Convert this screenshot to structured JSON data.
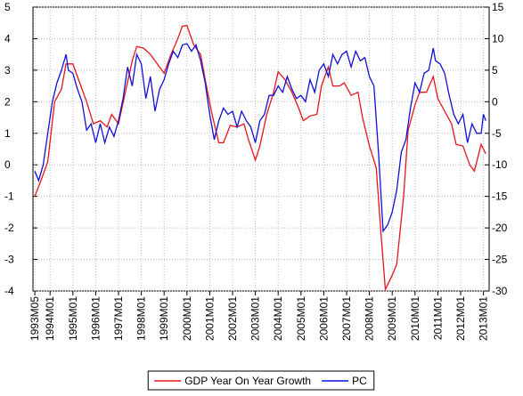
{
  "chart_data": {
    "type": "line",
    "xlim": [
      1993.25,
      2013.25
    ],
    "xticks": [
      {
        "value": 1993.333,
        "label": "1993M05"
      },
      {
        "value": 1994,
        "label": "1994M01"
      },
      {
        "value": 1995,
        "label": "1995M01"
      },
      {
        "value": 1996,
        "label": "1996M01"
      },
      {
        "value": 1997,
        "label": "1997M01"
      },
      {
        "value": 1998,
        "label": "1998M01"
      },
      {
        "value": 1999,
        "label": "1999M01"
      },
      {
        "value": 2000,
        "label": "2000M01"
      },
      {
        "value": 2001,
        "label": "2001M01"
      },
      {
        "value": 2002,
        "label": "2002M01"
      },
      {
        "value": 2003,
        "label": "2003M01"
      },
      {
        "value": 2004,
        "label": "2004M01"
      },
      {
        "value": 2005,
        "label": "2005M01"
      },
      {
        "value": 2006,
        "label": "2006M01"
      },
      {
        "value": 2007,
        "label": "2007M01"
      },
      {
        "value": 2008,
        "label": "2008M01"
      },
      {
        "value": 2009,
        "label": "2009M01"
      },
      {
        "value": 2010,
        "label": "2010M01"
      },
      {
        "value": 2011,
        "label": "2011M01"
      },
      {
        "value": 2012,
        "label": "2012M01"
      },
      {
        "value": 2013,
        "label": "2013M01"
      }
    ],
    "ylim": [
      -4,
      5
    ],
    "yticks": [
      -4,
      -3,
      -2,
      -1,
      0,
      1,
      2,
      3,
      4,
      5
    ],
    "y2lim": [
      -30,
      15
    ],
    "y2ticks": [
      -30,
      -25,
      -20,
      -15,
      -10,
      -5,
      0,
      5,
      10,
      15
    ],
    "grid": true,
    "legend": "bottom",
    "series": [
      {
        "name": "GDP Year On Year Growth",
        "color": "#e8141c",
        "x": [
          1993.33,
          1993.6,
          1993.9,
          1994.2,
          1994.5,
          1994.7,
          1995.0,
          1995.3,
          1995.6,
          1995.9,
          1996.2,
          1996.5,
          1996.7,
          1997.0,
          1997.3,
          1997.6,
          1997.8,
          1998.1,
          1998.4,
          1998.7,
          1999.0,
          1999.3,
          1999.6,
          1999.8,
          2000.0,
          2000.3,
          2000.6,
          2000.8,
          2001.1,
          2001.4,
          2001.6,
          2001.9,
          2002.2,
          2002.5,
          2002.7,
          2003.0,
          2003.2,
          2003.5,
          2003.8,
          2004.0,
          2004.3,
          2004.6,
          2004.9,
          2005.1,
          2005.4,
          2005.7,
          2005.9,
          2006.2,
          2006.4,
          2006.7,
          2006.9,
          2007.2,
          2007.5,
          2007.7,
          2008.0,
          2008.3,
          2008.5,
          2008.7,
          2009.0,
          2009.2,
          2009.5,
          2009.7,
          2010.0,
          2010.2,
          2010.5,
          2010.8,
          2011.0,
          2011.3,
          2011.6,
          2011.8,
          2012.1,
          2012.4,
          2012.6,
          2012.9,
          2013.1
        ],
        "values": [
          -1,
          -0.5,
          0.1,
          2.0,
          2.4,
          3.2,
          3.2,
          2.6,
          2.0,
          1.3,
          1.4,
          1.2,
          1.6,
          1.3,
          2.3,
          3.3,
          3.75,
          3.7,
          3.5,
          3.2,
          2.9,
          3.5,
          4.0,
          4.4,
          4.42,
          3.8,
          3.5,
          2.7,
          1.6,
          0.7,
          0.7,
          1.25,
          1.2,
          1.3,
          0.8,
          0.15,
          0.6,
          1.6,
          2.3,
          2.95,
          2.7,
          2.3,
          1.8,
          1.4,
          1.55,
          1.6,
          2.5,
          3.1,
          2.5,
          2.5,
          2.6,
          2.2,
          2.3,
          1.5,
          0.6,
          -0.1,
          -2.1,
          -3.95,
          -3.5,
          -3.15,
          -1.0,
          1.1,
          1.9,
          2.3,
          2.3,
          2.8,
          2.1,
          1.7,
          1.3,
          0.65,
          0.6,
          0,
          -0.2,
          0.65,
          0.35
        ]
      },
      {
        "name": "PC",
        "color": "#1010d8",
        "axis": "y2",
        "x": [
          1993.33,
          1993.5,
          1993.7,
          1993.9,
          1994.1,
          1994.3,
          1994.5,
          1994.7,
          1994.8,
          1995.0,
          1995.2,
          1995.4,
          1995.6,
          1995.8,
          1996.0,
          1996.2,
          1996.4,
          1996.6,
          1996.8,
          1997.0,
          1997.2,
          1997.4,
          1997.6,
          1997.8,
          1998.0,
          1998.2,
          1998.4,
          1998.6,
          1998.8,
          1999.0,
          1999.2,
          1999.4,
          1999.6,
          1999.8,
          2000.0,
          2000.2,
          2000.4,
          2000.6,
          2000.8,
          2001.0,
          2001.2,
          2001.4,
          2001.6,
          2001.8,
          2002.0,
          2002.2,
          2002.4,
          2002.6,
          2002.8,
          2003.0,
          2003.2,
          2003.4,
          2003.6,
          2003.8,
          2004.0,
          2004.2,
          2004.4,
          2004.6,
          2004.8,
          2005.0,
          2005.2,
          2005.4,
          2005.6,
          2005.8,
          2006.0,
          2006.2,
          2006.4,
          2006.6,
          2006.8,
          2007.0,
          2007.2,
          2007.4,
          2007.6,
          2007.8,
          2008.0,
          2008.2,
          2008.4,
          2008.6,
          2008.8,
          2009.0,
          2009.2,
          2009.4,
          2009.6,
          2009.8,
          2010.0,
          2010.2,
          2010.4,
          2010.6,
          2010.8,
          2010.9,
          2011.1,
          2011.3,
          2011.5,
          2011.7,
          2011.9,
          2012.1,
          2012.3,
          2012.5,
          2012.7,
          2012.9,
          2013.0,
          2013.1
        ],
        "values": [
          -11,
          -12.5,
          -10,
          -5,
          0,
          3,
          5,
          7.5,
          5,
          4.5,
          2,
          0,
          -4.5,
          -3.5,
          -6.5,
          -3.5,
          -6.5,
          -4,
          -5.5,
          -3,
          0.5,
          5.5,
          2.5,
          7.5,
          6,
          0.5,
          4,
          -1.5,
          2,
          3.5,
          6,
          8,
          7,
          9,
          9.2,
          8,
          9,
          6.5,
          3,
          -2,
          -6,
          -3,
          -1,
          -2,
          -1.5,
          -4,
          -1.5,
          -3,
          -4,
          -6.5,
          -3,
          -2,
          1,
          1,
          2.5,
          1.5,
          4,
          2,
          0.5,
          1,
          0,
          3.5,
          1.5,
          5,
          6,
          4,
          7.5,
          6,
          7.5,
          8,
          5.5,
          8,
          6.5,
          7,
          4,
          2.5,
          -8,
          -20.5,
          -19.5,
          -17.5,
          -14,
          -8,
          -6,
          -1,
          3,
          1.5,
          4.5,
          5,
          8.5,
          6.5,
          6,
          4.5,
          1,
          -2,
          -3.5,
          -2,
          -6.5,
          -3.5,
          -5,
          -5,
          -2,
          -3
        ]
      }
    ]
  }
}
